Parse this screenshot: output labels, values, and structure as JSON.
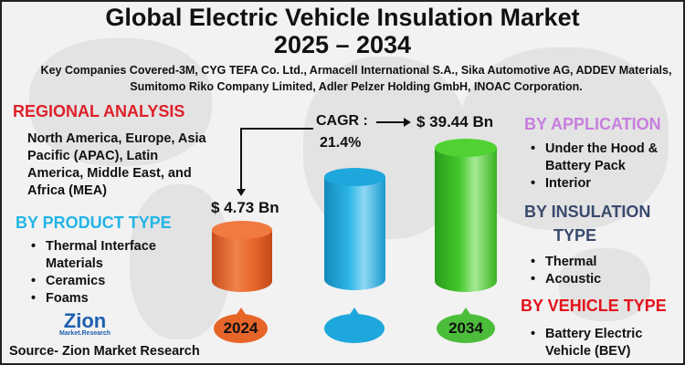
{
  "title_line1": "Global Electric Vehicle Insulation Market",
  "title_line2": "2025 – 2034",
  "key_companies": "Key Companies Covered-3M, CYG TEFA Co. Ltd., Armacell International S.A., Sika Automotive AG, ADDEV Materials, Sumitomo Riko Company Limited, Adler Pelzer Holding GmbH, INOAC Corporation.",
  "regional": {
    "heading": "REGIONAL ANALYSIS",
    "text": "North America, Europe, Asia Pacific (APAC), Latin America, Middle East, and Africa (MEA)",
    "color": "#e0202a"
  },
  "product_type": {
    "heading": "BY PRODUCT TYPE",
    "items": [
      "Thermal Interface Materials",
      "Ceramics",
      "Foams"
    ],
    "color": "#22b5e6"
  },
  "application": {
    "heading": "BY APPLICATION",
    "items": [
      "Under the Hood & Battery Pack",
      "Interior"
    ],
    "color": "#c77ee0"
  },
  "insulation_type": {
    "heading_line1": "BY INSULATION",
    "heading_line2": "TYPE",
    "items": [
      "Thermal",
      "Acoustic"
    ],
    "color": "#3a4a6e"
  },
  "vehicle_type": {
    "heading": "BY VEHICLE TYPE",
    "items": [
      "Battery Electric Vehicle (BEV)"
    ],
    "color": "#e3121b"
  },
  "cagr": {
    "label": "CAGR :",
    "value": "21.4%"
  },
  "logo": {
    "text": "Zion",
    "sub": "Market.Research"
  },
  "source": "Source- Zion Market Research",
  "chart_data": {
    "type": "bar",
    "categories": [
      "2024",
      "",
      "2034"
    ],
    "values": [
      4.73,
      null,
      39.44
    ],
    "value_labels": [
      "$ 4.73 Bn",
      "",
      "$ 39.44 Bn"
    ],
    "colors": [
      "#e8652a",
      "#1ea7dc",
      "#3fc42a"
    ]
  }
}
